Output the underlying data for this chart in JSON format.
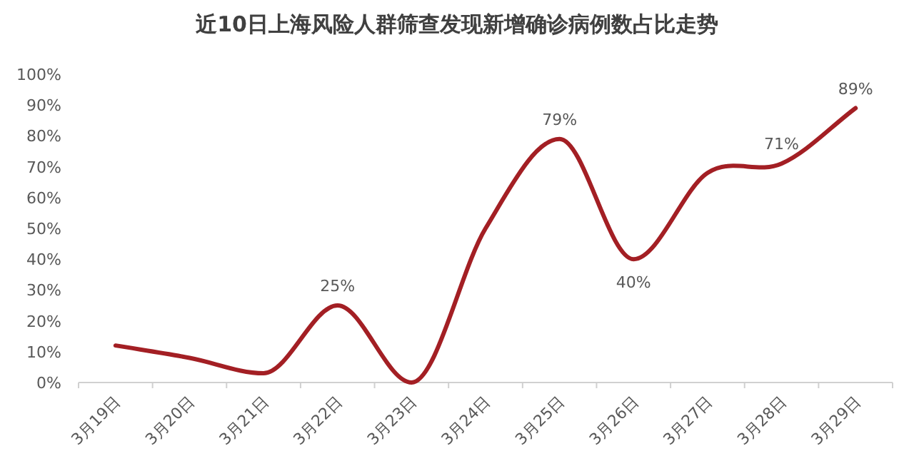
{
  "chart_data": {
    "type": "line",
    "title": "近10日上海风险人群筛查发现新增确诊病例数占比走势",
    "categories": [
      "3月19日",
      "3月20日",
      "3月21日",
      "3月22日",
      "3月23日",
      "3月24日",
      "3月25日",
      "3月26日",
      "3月27日",
      "3月28日",
      "3月29日"
    ],
    "series": [
      {
        "color": "#a31f24",
        "values": [
          12,
          8,
          3,
          25,
          0,
          50,
          79,
          40,
          68,
          71,
          89
        ],
        "value_labels": [
          null,
          null,
          null,
          "25%",
          null,
          null,
          "79%",
          "40%",
          null,
          "71%",
          "89%"
        ]
      }
    ],
    "ylim": [
      0,
      100
    ],
    "yticks": [
      {
        "value": 0,
        "label": "0%"
      },
      {
        "value": 10,
        "label": "10%"
      },
      {
        "value": 20,
        "label": "20%"
      },
      {
        "value": 30,
        "label": "30%"
      },
      {
        "value": 40,
        "label": "40%"
      },
      {
        "value": 50,
        "label": "50%"
      },
      {
        "value": 60,
        "label": "60%"
      },
      {
        "value": 70,
        "label": "70%"
      },
      {
        "value": 80,
        "label": "80%"
      },
      {
        "value": 90,
        "label": "90%"
      },
      {
        "value": 100,
        "label": "100%"
      }
    ],
    "grid": false
  }
}
